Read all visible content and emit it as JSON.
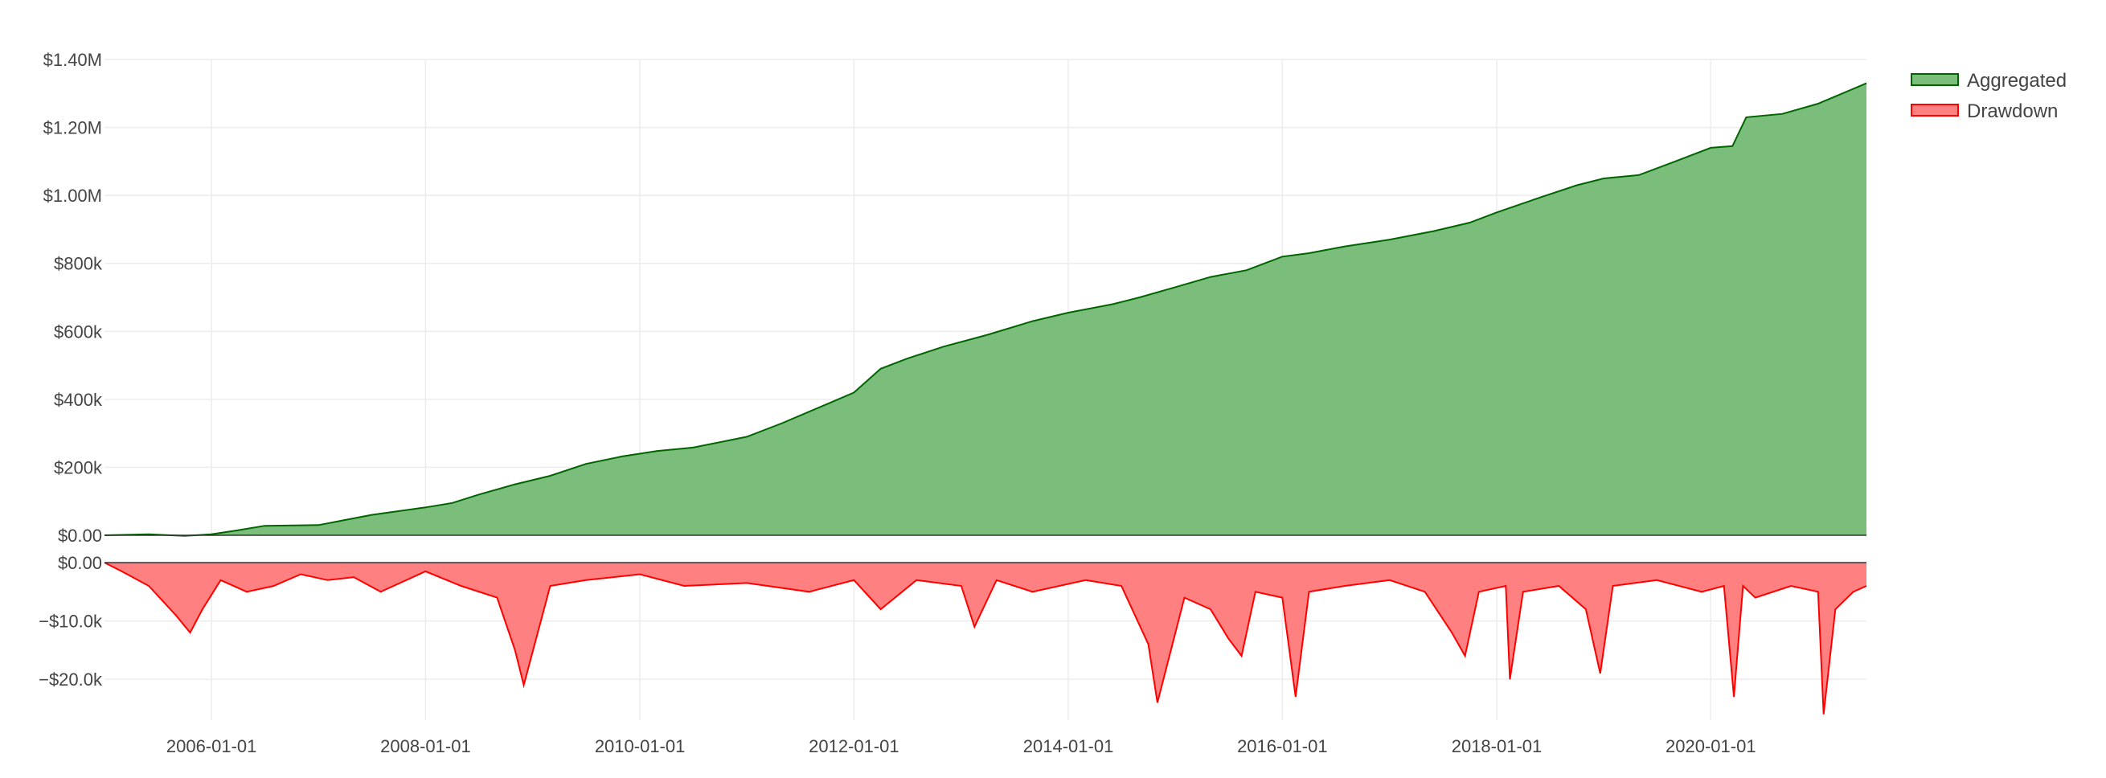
{
  "chart_data": [
    {
      "type": "area",
      "title": "",
      "xlabel": "",
      "ylabel": "",
      "x_range": [
        "2005-01-01",
        "2021-06-15"
      ],
      "ylim": [
        0,
        1400000
      ],
      "y_ticks": [
        0,
        200000,
        400000,
        600000,
        800000,
        1000000,
        1200000,
        1400000
      ],
      "y_tick_labels": [
        "$0.00",
        "$200k",
        "$400k",
        "$600k",
        "$800k",
        "$1.00M",
        "$1.20M",
        "$1.40M"
      ],
      "grid": true,
      "series": [
        {
          "name": "Aggregated",
          "color": "#006400",
          "fill": "#7bbd7b",
          "x": [
            "2005-01-01",
            "2005-06-01",
            "2005-10-01",
            "2006-01-01",
            "2006-04-01",
            "2006-07-01",
            "2007-01-01",
            "2007-04-01",
            "2007-07-01",
            "2008-01-01",
            "2008-04-01",
            "2008-07-01",
            "2008-11-01",
            "2009-03-01",
            "2009-07-01",
            "2009-11-01",
            "2010-03-01",
            "2010-07-01",
            "2011-01-01",
            "2011-05-01",
            "2011-09-01",
            "2012-01-01",
            "2012-04-01",
            "2012-07-01",
            "2012-11-01",
            "2013-04-01",
            "2013-09-01",
            "2014-01-01",
            "2014-06-01",
            "2014-09-01",
            "2015-01-01",
            "2015-05-01",
            "2015-09-01",
            "2016-01-01",
            "2016-04-01",
            "2016-08-01",
            "2017-01-01",
            "2017-06-01",
            "2017-10-01",
            "2018-01-01",
            "2018-06-01",
            "2018-10-01",
            "2019-01-01",
            "2019-05-01",
            "2019-09-01",
            "2020-01-01",
            "2020-03-15",
            "2020-05-01",
            "2020-09-01",
            "2021-01-01",
            "2021-06-15"
          ],
          "values": [
            0,
            3000,
            -2000,
            3000,
            15000,
            28000,
            30000,
            45000,
            60000,
            82000,
            95000,
            120000,
            150000,
            175000,
            210000,
            232000,
            248000,
            258000,
            290000,
            330000,
            375000,
            420000,
            490000,
            520000,
            555000,
            590000,
            630000,
            655000,
            680000,
            700000,
            730000,
            760000,
            780000,
            820000,
            830000,
            850000,
            870000,
            895000,
            920000,
            950000,
            995000,
            1030000,
            1050000,
            1060000,
            1100000,
            1140000,
            1145000,
            1230000,
            1240000,
            1270000,
            1330000
          ]
        }
      ]
    },
    {
      "type": "area",
      "title": "",
      "xlabel": "",
      "ylabel": "",
      "x_range": [
        "2005-01-01",
        "2021-06-15"
      ],
      "ylim": [
        -27000,
        0
      ],
      "y_ticks": [
        0,
        -10000,
        -20000
      ],
      "y_tick_labels": [
        "$0.00",
        "−$10.0k",
        "−$20.0k"
      ],
      "x_ticks": [
        "2006-01-01",
        "2008-01-01",
        "2010-01-01",
        "2012-01-01",
        "2014-01-01",
        "2016-01-01",
        "2018-01-01",
        "2020-01-01"
      ],
      "grid": true,
      "series": [
        {
          "name": "Drawdown",
          "color": "#ff0000",
          "fill": "#ff8080",
          "x": [
            "2005-01-01",
            "2005-03-01",
            "2005-06-01",
            "2005-09-01",
            "2005-10-20",
            "2005-12-01",
            "2006-02-01",
            "2006-05-01",
            "2006-08-01",
            "2006-11-01",
            "2007-02-01",
            "2007-05-01",
            "2007-08-01",
            "2008-01-01",
            "2008-05-01",
            "2008-09-01",
            "2008-11-01",
            "2008-12-01",
            "2009-03-01",
            "2009-07-01",
            "2010-01-01",
            "2010-06-01",
            "2011-01-01",
            "2011-08-01",
            "2012-01-01",
            "2012-04-01",
            "2012-08-01",
            "2013-01-01",
            "2013-02-15",
            "2013-05-01",
            "2013-09-01",
            "2014-03-01",
            "2014-07-01",
            "2014-10-01",
            "2014-11-01",
            "2015-02-01",
            "2015-05-01",
            "2015-07-01",
            "2015-08-15",
            "2015-10-01",
            "2016-01-01",
            "2016-02-15",
            "2016-04-01",
            "2016-08-01",
            "2017-01-01",
            "2017-05-01",
            "2017-08-01",
            "2017-09-15",
            "2017-11-01",
            "2018-02-01",
            "2018-02-15",
            "2018-04-01",
            "2018-08-01",
            "2018-11-01",
            "2018-12-20",
            "2019-02-01",
            "2019-07-01",
            "2019-12-01",
            "2020-02-15",
            "2020-03-20",
            "2020-04-20",
            "2020-06-01",
            "2020-10-01",
            "2021-01-01",
            "2021-01-20",
            "2021-03-01",
            "2021-05-01",
            "2021-06-15"
          ],
          "values": [
            0,
            -1500,
            -4000,
            -9000,
            -12000,
            -8000,
            -3000,
            -5000,
            -4000,
            -2000,
            -3000,
            -2500,
            -5000,
            -1500,
            -4000,
            -6000,
            -15000,
            -21000,
            -4000,
            -3000,
            -2000,
            -4000,
            -3500,
            -5000,
            -3000,
            -8000,
            -3000,
            -4000,
            -11000,
            -3000,
            -5000,
            -3000,
            -4000,
            -14000,
            -24000,
            -6000,
            -8000,
            -13000,
            -16000,
            -5000,
            -6000,
            -23000,
            -5000,
            -4000,
            -3000,
            -5000,
            -12000,
            -16000,
            -5000,
            -4000,
            -20000,
            -5000,
            -4000,
            -8000,
            -19000,
            -4000,
            -3000,
            -5000,
            -4000,
            -23000,
            -4000,
            -6000,
            -4000,
            -5000,
            -26000,
            -8000,
            -5000,
            -4000
          ]
        }
      ]
    }
  ],
  "legend": {
    "placement": "top-right",
    "items": [
      {
        "label": "Aggregated",
        "swatch_fill": "#7bbd7b",
        "swatch_stroke": "#006400"
      },
      {
        "label": "Drawdown",
        "swatch_fill": "#ff8080",
        "swatch_stroke": "#ff0000"
      }
    ]
  }
}
